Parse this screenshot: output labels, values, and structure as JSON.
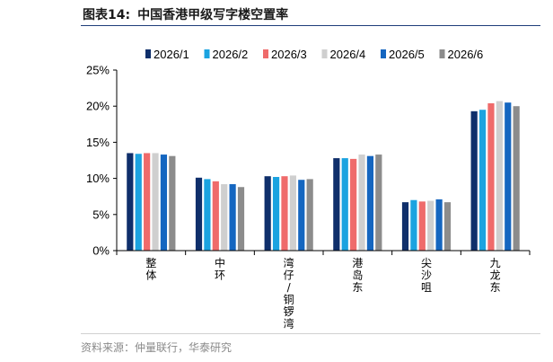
{
  "figure": {
    "label": "图表14:",
    "title": "中国香港甲级写字楼空置率",
    "source": "资料来源：仲量联行，华泰研究"
  },
  "chart_data": {
    "type": "bar",
    "categories": [
      [
        "整",
        "体"
      ],
      [
        "中",
        "环"
      ],
      [
        "湾",
        "仔",
        "/",
        "铜",
        "锣",
        "湾"
      ],
      [
        "港",
        "岛",
        "东"
      ],
      [
        "尖",
        "沙",
        "咀"
      ],
      [
        "九",
        "龙",
        "东"
      ]
    ],
    "series": [
      {
        "name": "2026/1",
        "color": "#0f2f6b",
        "values": [
          0.135,
          0.101,
          0.103,
          0.128,
          0.067,
          0.193
        ]
      },
      {
        "name": "2026/2",
        "color": "#1ba3e0",
        "values": [
          0.134,
          0.099,
          0.102,
          0.128,
          0.07,
          0.195
        ]
      },
      {
        "name": "2026/3",
        "color": "#ef6b6b",
        "values": [
          0.135,
          0.096,
          0.103,
          0.127,
          0.068,
          0.204
        ]
      },
      {
        "name": "2026/4",
        "color": "#cfcfcf",
        "values": [
          0.135,
          0.092,
          0.104,
          0.133,
          0.069,
          0.207
        ]
      },
      {
        "name": "2026/5",
        "color": "#1566c0",
        "values": [
          0.133,
          0.092,
          0.098,
          0.131,
          0.071,
          0.205
        ]
      },
      {
        "name": "2026/6",
        "color": "#8c8c8c",
        "values": [
          0.131,
          0.088,
          0.099,
          0.133,
          0.067,
          0.2
        ]
      }
    ],
    "yticks": [
      "0%",
      "5%",
      "10%",
      "15%",
      "20%",
      "25%"
    ],
    "ylim": [
      0,
      0.25
    ],
    "legend_position": "top",
    "grid": false
  }
}
